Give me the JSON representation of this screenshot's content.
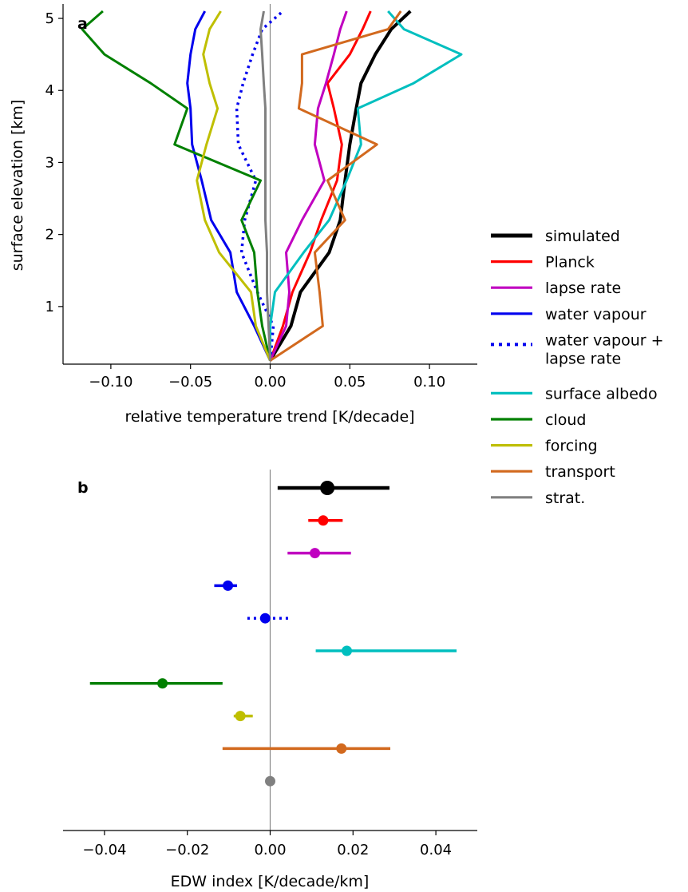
{
  "chart_data": [
    {
      "panel_label": "a",
      "type": "line",
      "xlabel": "relative temperature trend [K/decade]",
      "ylabel": "surface elevation [km]",
      "xlim": [
        -0.13,
        0.13
      ],
      "ylim": [
        0.2,
        5.2
      ],
      "xticks": [
        "−0.10",
        "−0.05",
        "0.00",
        "0.05",
        "0.10"
      ],
      "xtick_values": [
        -0.1,
        -0.05,
        0.0,
        0.05,
        0.1
      ],
      "yticks": [
        "1",
        "2",
        "3",
        "4",
        "5"
      ],
      "ytick_values": [
        1,
        2,
        3,
        4,
        5
      ],
      "zero_line": true,
      "legend": "right",
      "series": [
        {
          "name": "simulated",
          "color": "#000000",
          "style": "solid",
          "x": [
            0.0,
            0.013,
            0.019,
            0.037,
            0.044,
            0.047,
            0.05,
            0.054,
            0.057,
            0.066,
            0.076,
            0.088
          ],
          "y": [
            0.25,
            0.73,
            1.2,
            1.75,
            2.2,
            2.75,
            3.25,
            3.75,
            4.1,
            4.5,
            4.85,
            5.1
          ]
        },
        {
          "name": "Planck",
          "color": "#ff0000",
          "style": "solid",
          "x": [
            0.0,
            0.008,
            0.014,
            0.025,
            0.032,
            0.042,
            0.045,
            0.04,
            0.036,
            0.05,
            0.058,
            0.063
          ],
          "y": [
            0.25,
            0.73,
            1.2,
            1.75,
            2.2,
            2.75,
            3.25,
            3.75,
            4.1,
            4.5,
            4.85,
            5.1
          ]
        },
        {
          "name": "lapse rate",
          "color": "#c000c0",
          "style": "solid",
          "x": [
            0.0,
            0.01,
            0.012,
            0.01,
            0.02,
            0.034,
            0.028,
            0.03,
            0.035,
            0.04,
            0.044,
            0.048
          ],
          "y": [
            0.25,
            0.73,
            1.2,
            1.75,
            2.2,
            2.75,
            3.25,
            3.75,
            4.1,
            4.5,
            4.85,
            5.1
          ]
        },
        {
          "name": "water vapour",
          "color": "#0000ee",
          "style": "solid",
          "x": [
            0.0,
            -0.01,
            -0.021,
            -0.025,
            -0.037,
            -0.043,
            -0.049,
            -0.05,
            -0.052,
            -0.05,
            -0.047,
            -0.041
          ],
          "y": [
            0.25,
            0.73,
            1.2,
            1.75,
            2.2,
            2.75,
            3.25,
            3.75,
            4.1,
            4.5,
            4.85,
            5.1
          ]
        },
        {
          "name": "water vapour + lapse rate",
          "color": "#0000ee",
          "style": "dotted",
          "x": [
            0.0,
            0.002,
            -0.008,
            -0.018,
            -0.016,
            -0.009,
            -0.02,
            -0.021,
            -0.017,
            -0.011,
            -0.005,
            0.008
          ],
          "y": [
            0.25,
            0.73,
            1.2,
            1.75,
            2.2,
            2.75,
            3.25,
            3.75,
            4.1,
            4.5,
            4.85,
            5.1
          ]
        },
        {
          "name": "surface albedo",
          "color": "#00bfbf",
          "style": "solid",
          "x": [
            0.0,
            0.0,
            0.003,
            0.021,
            0.037,
            0.048,
            0.057,
            0.055,
            0.09,
            0.12,
            0.084,
            0.074
          ],
          "y": [
            0.25,
            0.73,
            1.2,
            1.75,
            2.2,
            2.75,
            3.25,
            3.75,
            4.1,
            4.5,
            4.85,
            5.1
          ]
        },
        {
          "name": "cloud",
          "color": "#008000",
          "style": "solid",
          "x": [
            0.0,
            -0.005,
            -0.008,
            -0.01,
            -0.018,
            -0.006,
            -0.06,
            -0.052,
            -0.075,
            -0.104,
            -0.118,
            -0.105
          ],
          "y": [
            0.25,
            0.73,
            1.2,
            1.75,
            2.2,
            2.75,
            3.25,
            3.75,
            4.1,
            4.5,
            4.85,
            5.1
          ]
        },
        {
          "name": "forcing",
          "color": "#bfbf00",
          "style": "solid",
          "x": [
            0.0,
            -0.009,
            -0.012,
            -0.032,
            -0.041,
            -0.046,
            -0.04,
            -0.033,
            -0.038,
            -0.042,
            -0.038,
            -0.031
          ],
          "y": [
            0.25,
            0.73,
            1.2,
            1.75,
            2.2,
            2.75,
            3.25,
            3.75,
            4.1,
            4.5,
            4.85,
            5.1
          ]
        },
        {
          "name": "transport",
          "color": "#d2691e",
          "style": "solid",
          "x": [
            0.0,
            0.033,
            0.031,
            0.028,
            0.047,
            0.036,
            0.067,
            0.018,
            0.02,
            0.02,
            0.074,
            0.082
          ],
          "y": [
            0.25,
            0.73,
            1.2,
            1.75,
            2.2,
            2.75,
            3.25,
            3.75,
            4.1,
            4.5,
            4.85,
            5.1
          ]
        },
        {
          "name": "strat.",
          "color": "#808080",
          "style": "solid",
          "x": [
            0.0,
            -0.001,
            -0.002,
            -0.002,
            -0.003,
            -0.003,
            -0.003,
            -0.003,
            -0.004,
            -0.005,
            -0.006,
            -0.004
          ],
          "y": [
            0.25,
            0.73,
            1.2,
            1.75,
            2.2,
            2.75,
            3.25,
            3.75,
            4.1,
            4.5,
            4.85,
            5.1
          ]
        }
      ]
    },
    {
      "panel_label": "b",
      "type": "scatter",
      "xlabel": "EDW index [K/decade/km]",
      "xlim": [
        -0.05,
        0.05
      ],
      "xticks": [
        "−0.04",
        "−0.02",
        "0.00",
        "0.02",
        "0.04"
      ],
      "xtick_values": [
        -0.04,
        -0.02,
        0.0,
        0.02,
        0.04
      ],
      "zero_line": true,
      "points": [
        {
          "series": "simulated",
          "color": "#000000",
          "value": 0.0138,
          "low": 0.0018,
          "high": 0.0288,
          "style": "solid",
          "large": true
        },
        {
          "series": "Planck",
          "color": "#ff0000",
          "value": 0.0128,
          "low": 0.0092,
          "high": 0.0175,
          "style": "solid"
        },
        {
          "series": "lapse rate",
          "color": "#c000c0",
          "value": 0.0108,
          "low": 0.0042,
          "high": 0.0195,
          "style": "solid"
        },
        {
          "series": "water vapour",
          "color": "#0000ee",
          "value": -0.0102,
          "low": -0.0135,
          "high": -0.008,
          "style": "solid"
        },
        {
          "series": "water vapour + lapse rate",
          "color": "#0000ee",
          "value": -0.0012,
          "low": -0.0055,
          "high": 0.0045,
          "style": "dotted"
        },
        {
          "series": "surface albedo",
          "color": "#00bfbf",
          "value": 0.0185,
          "low": 0.011,
          "high": 0.045,
          "style": "solid"
        },
        {
          "series": "cloud",
          "color": "#008000",
          "value": -0.026,
          "low": -0.0435,
          "high": -0.0115,
          "style": "solid"
        },
        {
          "series": "forcing",
          "color": "#bfbf00",
          "value": -0.0072,
          "low": -0.0088,
          "high": -0.0042,
          "style": "solid"
        },
        {
          "series": "transport",
          "color": "#d2691e",
          "value": 0.0172,
          "low": -0.0115,
          "high": 0.029,
          "style": "solid"
        },
        {
          "series": "strat.",
          "color": "#808080",
          "value": 0.0,
          "low": 0.0,
          "high": 0.0,
          "style": "solid"
        }
      ]
    }
  ],
  "legend": {
    "items": [
      {
        "label": "simulated",
        "color": "#000000",
        "style": "solid",
        "thick": true
      },
      {
        "label": "Planck",
        "color": "#ff0000",
        "style": "solid"
      },
      {
        "label": "lapse rate",
        "color": "#c000c0",
        "style": "solid"
      },
      {
        "label": "water vapour",
        "color": "#0000ee",
        "style": "solid"
      },
      {
        "label": "water vapour +",
        "label2": "lapse rate",
        "color": "#0000ee",
        "style": "dotted"
      },
      {
        "label": "surface albedo",
        "color": "#00bfbf",
        "style": "solid"
      },
      {
        "label": "cloud",
        "color": "#008000",
        "style": "solid"
      },
      {
        "label": "forcing",
        "color": "#bfbf00",
        "style": "solid"
      },
      {
        "label": "transport",
        "color": "#d2691e",
        "style": "solid"
      },
      {
        "label": "strat.",
        "color": "#808080",
        "style": "solid"
      }
    ]
  }
}
